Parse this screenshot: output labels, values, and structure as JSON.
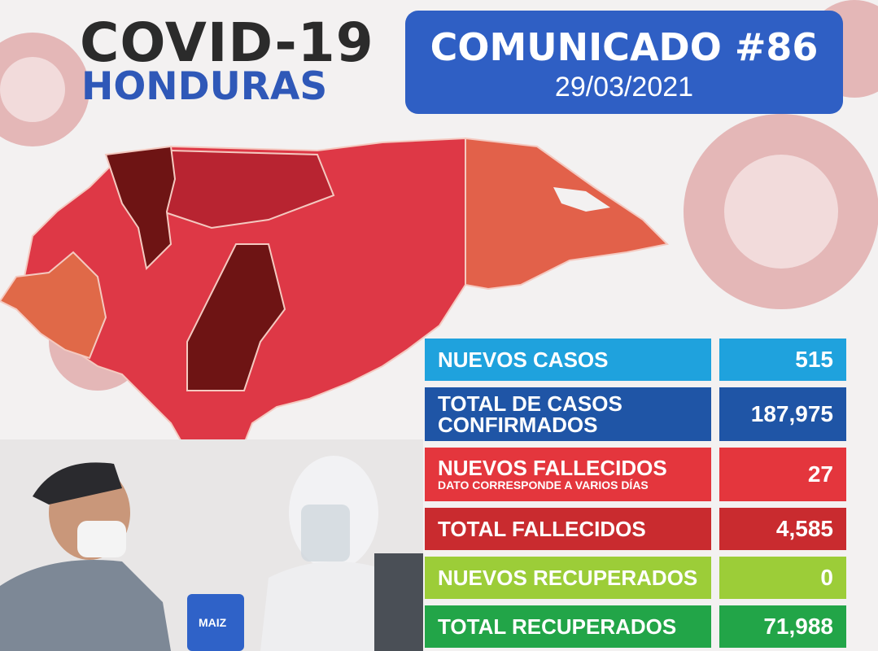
{
  "header": {
    "title_line1": "COVID-19",
    "title_line2": "HONDURAS"
  },
  "communique": {
    "title": "COMUNICADO #86",
    "date": "29/03/2021"
  },
  "stats": [
    {
      "label": "NUEVOS CASOS",
      "sub": "",
      "value": "515",
      "color": "#1fa2dd"
    },
    {
      "label": "TOTAL DE CASOS CONFIRMADOS",
      "sub": "",
      "value": "187,975",
      "color": "#1f55a6"
    },
    {
      "label": "NUEVOS FALLECIDOS",
      "sub": "DATO CORRESPONDE A VARIOS DÍAS",
      "value": "27",
      "color": "#e4363d"
    },
    {
      "label": "TOTAL FALLECIDOS",
      "sub": "",
      "value": "4,585",
      "color": "#c92b2f"
    },
    {
      "label": "NUEVOS RECUPERADOS",
      "sub": "",
      "value": "0",
      "color": "#9ccd38"
    },
    {
      "label": "TOTAL RECUPERADOS",
      "sub": "",
      "value": "71,988",
      "color": "#22a548"
    }
  ],
  "photo": {
    "bag_text": "MAIZ"
  }
}
